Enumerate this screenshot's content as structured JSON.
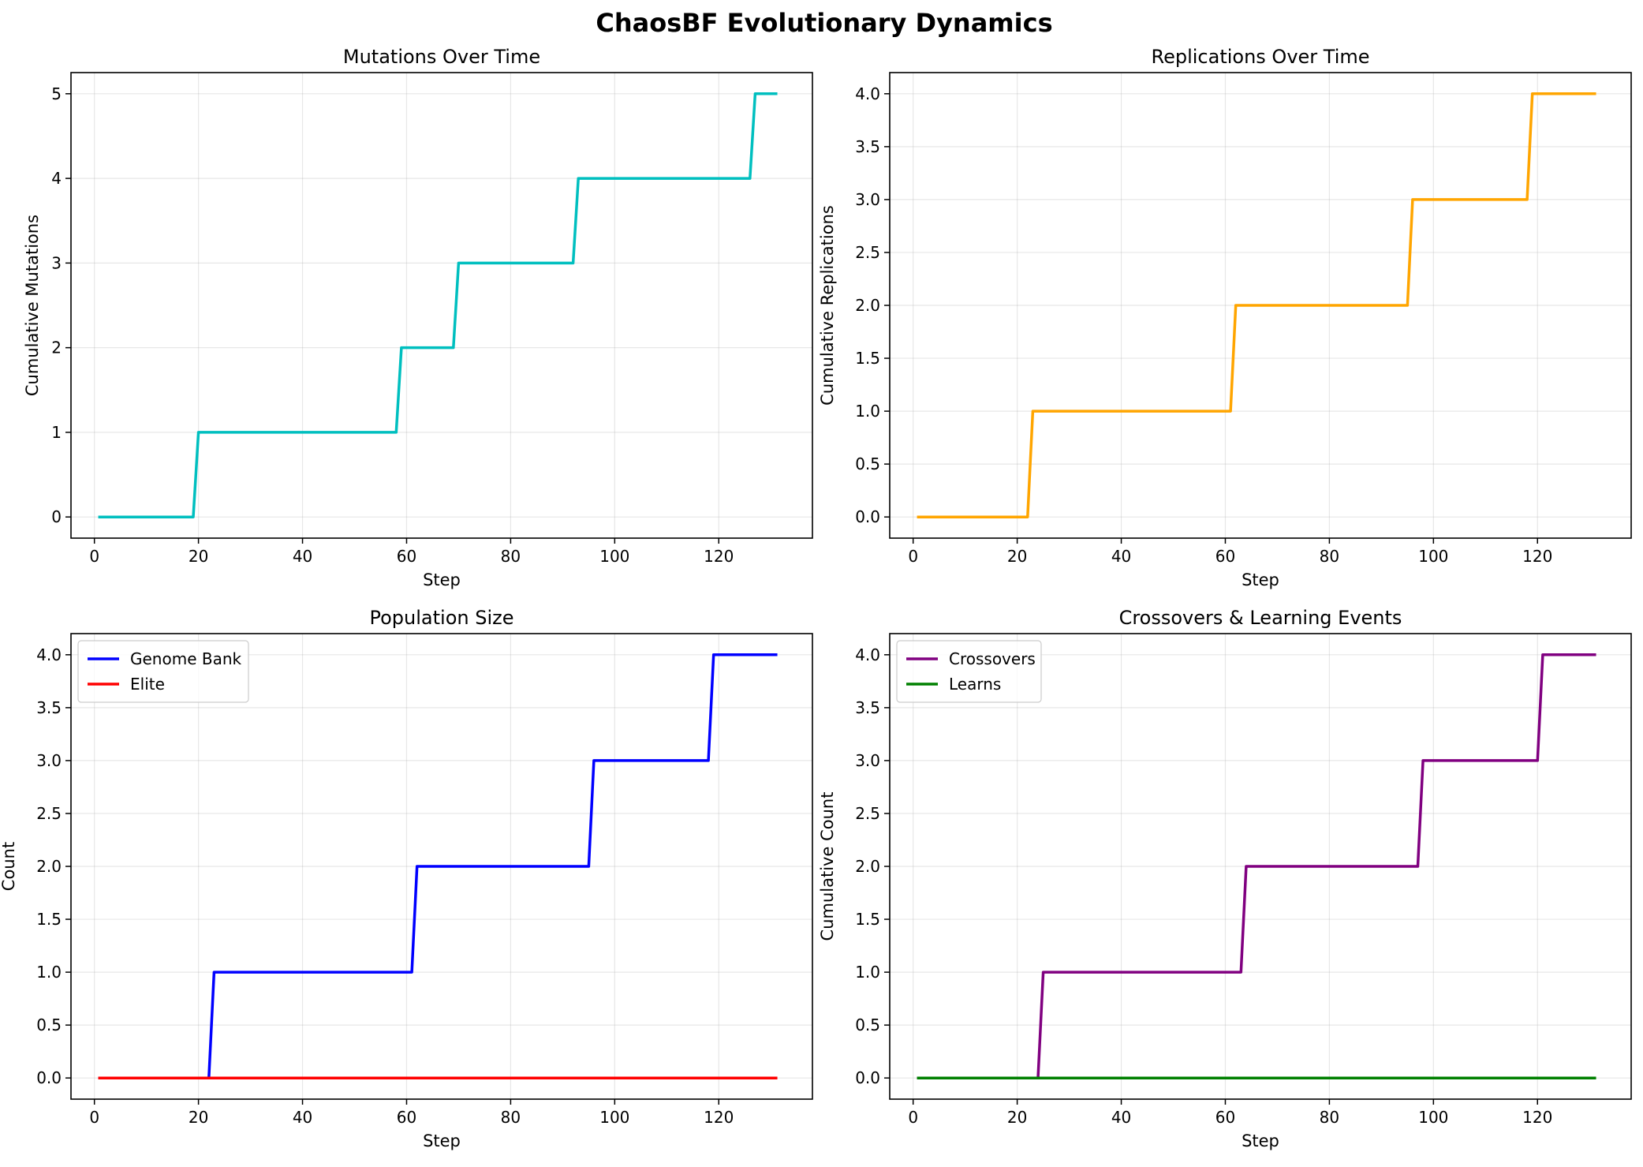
{
  "figure": {
    "title": "ChaosBF Evolutionary Dynamics"
  },
  "chart_data": [
    {
      "type": "line",
      "title": "Mutations Over Time",
      "xlabel": "Step",
      "ylabel": "Cumulative Mutations",
      "xlim": [
        -4.5,
        138
      ],
      "ylim": [
        -0.25,
        5.25
      ],
      "xticks": [
        0,
        20,
        40,
        60,
        80,
        100,
        120
      ],
      "yticks": [
        0,
        1,
        2,
        3,
        4,
        5
      ],
      "ytick_labels": [
        "0",
        "1",
        "2",
        "3",
        "4",
        "5"
      ],
      "grid": true,
      "legend": null,
      "series": [
        {
          "color": "#00bfbf",
          "x": [
            1,
            19,
            20,
            58,
            59,
            69,
            70,
            92,
            93,
            126,
            127,
            131
          ],
          "y": [
            0,
            0,
            1,
            1,
            2,
            2,
            3,
            3,
            4,
            4,
            5,
            5
          ]
        }
      ]
    },
    {
      "type": "line",
      "title": "Replications Over Time",
      "xlabel": "Step",
      "ylabel": "Cumulative Replications",
      "xlim": [
        -4.5,
        138
      ],
      "ylim": [
        -0.2,
        4.2
      ],
      "xticks": [
        0,
        20,
        40,
        60,
        80,
        100,
        120
      ],
      "yticks": [
        0,
        0.5,
        1,
        1.5,
        2,
        2.5,
        3,
        3.5,
        4
      ],
      "ytick_labels": [
        "0.0",
        "0.5",
        "1.0",
        "1.5",
        "2.0",
        "2.5",
        "3.0",
        "3.5",
        "4.0"
      ],
      "grid": true,
      "legend": null,
      "series": [
        {
          "color": "#ffa500",
          "x": [
            1,
            22,
            23,
            61,
            62,
            95,
            96,
            118,
            119,
            131
          ],
          "y": [
            0,
            0,
            1,
            1,
            2,
            2,
            3,
            3,
            4,
            4
          ]
        }
      ]
    },
    {
      "type": "line",
      "title": "Population Size",
      "xlabel": "Step",
      "ylabel": "Count",
      "xlim": [
        -4.5,
        138
      ],
      "ylim": [
        -0.2,
        4.2
      ],
      "xticks": [
        0,
        20,
        40,
        60,
        80,
        100,
        120
      ],
      "yticks": [
        0,
        0.5,
        1,
        1.5,
        2,
        2.5,
        3,
        3.5,
        4
      ],
      "ytick_labels": [
        "0.0",
        "0.5",
        "1.0",
        "1.5",
        "2.0",
        "2.5",
        "3.0",
        "3.5",
        "4.0"
      ],
      "grid": true,
      "legend": "upper-left",
      "series": [
        {
          "name": "Genome Bank",
          "color": "#0000ff",
          "x": [
            1,
            22,
            23,
            61,
            62,
            95,
            96,
            118,
            119,
            131
          ],
          "y": [
            0,
            0,
            1,
            1,
            2,
            2,
            3,
            3,
            4,
            4
          ]
        },
        {
          "name": "Elite",
          "color": "#ff0000",
          "x": [
            1,
            131
          ],
          "y": [
            0,
            0
          ]
        }
      ]
    },
    {
      "type": "line",
      "title": "Crossovers & Learning Events",
      "xlabel": "Step",
      "ylabel": "Cumulative Count",
      "xlim": [
        -4.5,
        138
      ],
      "ylim": [
        -0.2,
        4.2
      ],
      "xticks": [
        0,
        20,
        40,
        60,
        80,
        100,
        120
      ],
      "yticks": [
        0,
        0.5,
        1,
        1.5,
        2,
        2.5,
        3,
        3.5,
        4
      ],
      "ytick_labels": [
        "0.0",
        "0.5",
        "1.0",
        "1.5",
        "2.0",
        "2.5",
        "3.0",
        "3.5",
        "4.0"
      ],
      "grid": true,
      "legend": "upper-left",
      "series": [
        {
          "name": "Crossovers",
          "color": "#800080",
          "x": [
            1,
            24,
            25,
            63,
            64,
            97,
            98,
            120,
            121,
            131
          ],
          "y": [
            0,
            0,
            1,
            1,
            2,
            2,
            3,
            3,
            4,
            4
          ]
        },
        {
          "name": "Learns",
          "color": "#008000",
          "x": [
            1,
            131
          ],
          "y": [
            0,
            0
          ]
        }
      ]
    }
  ]
}
